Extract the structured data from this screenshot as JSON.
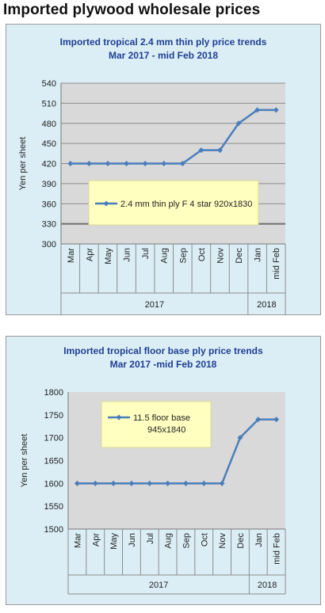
{
  "page": {
    "title": "Imported plywood wholesale prices"
  },
  "colors": {
    "panel_bg": "#dbeef6",
    "plot_bg": "#d9d9d9",
    "series": "#4a7ebb",
    "legend_bg": "#ffffc0",
    "title": "#1f3f91"
  },
  "chart_data": [
    {
      "type": "line",
      "title": "Imported tropical 2.4 mm thin ply price trends",
      "subtitle": "Mar 2017 - mid Feb 2018",
      "ylabel": "Yen per sheet",
      "xlabel": "",
      "ylim": [
        300,
        540
      ],
      "yticks": [
        300,
        330,
        360,
        390,
        420,
        450,
        480,
        510,
        540
      ],
      "grid": true,
      "categories": [
        "Mar",
        "Apr",
        "May",
        "Jun",
        "Jul",
        "Aug",
        "Sep",
        "Oct",
        "Nov",
        "Dec",
        "Jan",
        "mid Feb"
      ],
      "year_groups": [
        {
          "label": "2017",
          "count": 10
        },
        {
          "label": "2018",
          "count": 2
        }
      ],
      "series": [
        {
          "name": "2.4 mm thin ply F 4 star 920x1830",
          "values": [
            420,
            420,
            420,
            420,
            420,
            420,
            420,
            440,
            440,
            480,
            500,
            500
          ]
        }
      ],
      "legend": {
        "lines": [
          "2.4 mm thin ply F 4 star 920x1830"
        ],
        "position": "center-bottom"
      }
    },
    {
      "type": "line",
      "title": "Imported tropical floor base ply price trends",
      "subtitle": "Mar 2017 -mid Feb 2018",
      "ylabel": "Yen per sheet",
      "xlabel": "",
      "ylim": [
        1500,
        1800
      ],
      "yticks": [
        1500,
        1550,
        1600,
        1650,
        1700,
        1750,
        1800
      ],
      "grid": false,
      "categories": [
        "Mar",
        "Apr",
        "May",
        "Jun",
        "Jul",
        "Aug",
        "Sep",
        "Oct",
        "Nov",
        "Dec",
        "Jan",
        "mid Feb"
      ],
      "year_groups": [
        {
          "label": "2017",
          "count": 10
        },
        {
          "label": "2018",
          "count": 2
        }
      ],
      "series": [
        {
          "name": "11.5 floor base 945x1840",
          "values": [
            1600,
            1600,
            1600,
            1600,
            1600,
            1600,
            1600,
            1600,
            1600,
            1700,
            1740,
            1740
          ]
        }
      ],
      "legend": {
        "lines": [
          "11.5 floor base",
          "945x1840"
        ],
        "position": "top-center"
      }
    }
  ]
}
